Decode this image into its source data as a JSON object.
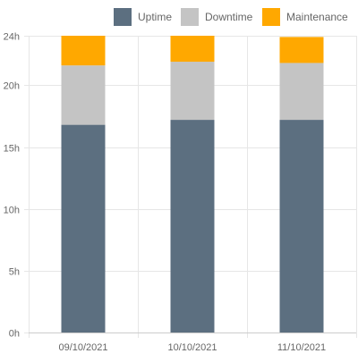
{
  "chart_data": {
    "type": "bar",
    "stacked": true,
    "categories": [
      "09/10/2021",
      "10/10/2021",
      "11/10/2021"
    ],
    "series": [
      {
        "name": "Uptime",
        "color": "#5c6f80",
        "values": [
          16.8,
          17.2,
          17.2
        ]
      },
      {
        "name": "Downtime",
        "color": "#c4c4c4",
        "values": [
          4.8,
          4.7,
          4.6
        ]
      },
      {
        "name": "Maintenance",
        "color": "#ffa800",
        "values": [
          2.4,
          2.1,
          2.1
        ]
      }
    ],
    "yticks": [
      "0h",
      "5h",
      "10h",
      "15h",
      "20h",
      "24h"
    ],
    "ytick_values": [
      0,
      5,
      10,
      15,
      20,
      24
    ],
    "ylim": [
      0,
      24
    ],
    "xlabel": "",
    "ylabel": "",
    "title": "",
    "legend_position": "top-right",
    "grid": true,
    "colors": {
      "grid": "#e6e6e6",
      "axis": "#cccccc",
      "text": "#666666"
    }
  }
}
